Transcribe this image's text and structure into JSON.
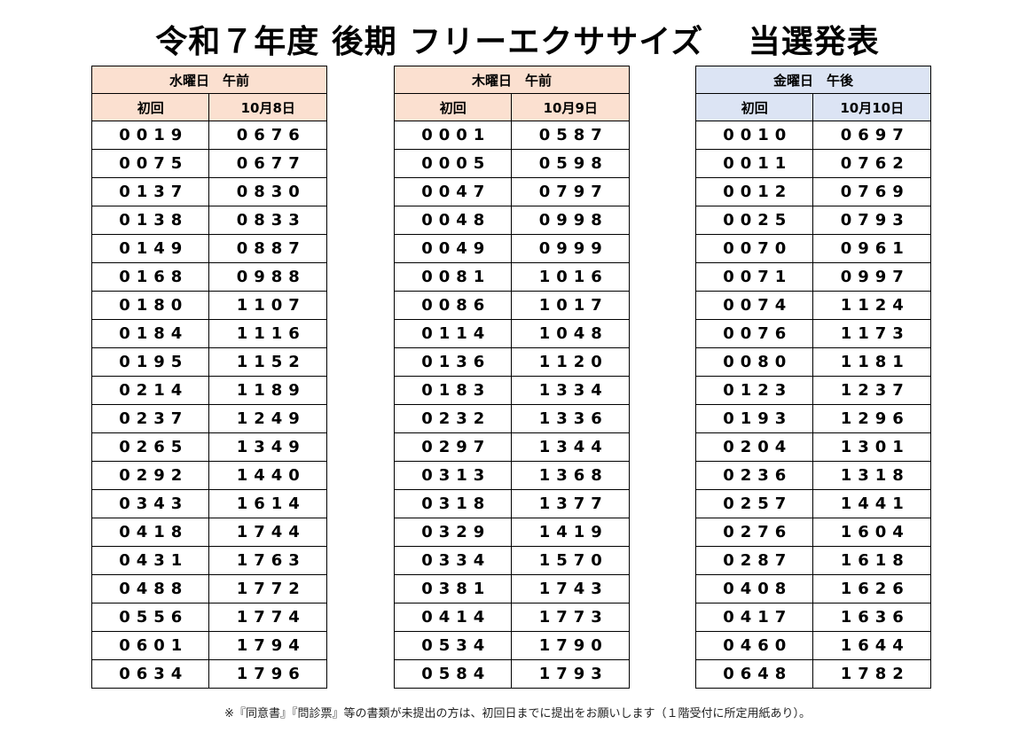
{
  "title": "令和７年度 後期 フリーエクササイズ　 当選発表",
  "tables": [
    {
      "header": "水曜日　午前",
      "col1": "初回",
      "col2": "10月8日",
      "rows": [
        [
          "0019",
          "0676"
        ],
        [
          "0075",
          "0677"
        ],
        [
          "0137",
          "0830"
        ],
        [
          "0138",
          "0833"
        ],
        [
          "0149",
          "0887"
        ],
        [
          "0168",
          "0988"
        ],
        [
          "0180",
          "1107"
        ],
        [
          "0184",
          "1116"
        ],
        [
          "0195",
          "1152"
        ],
        [
          "0214",
          "1189"
        ],
        [
          "0237",
          "1249"
        ],
        [
          "0265",
          "1349"
        ],
        [
          "0292",
          "1440"
        ],
        [
          "0343",
          "1614"
        ],
        [
          "0418",
          "1744"
        ],
        [
          "0431",
          "1763"
        ],
        [
          "0488",
          "1772"
        ],
        [
          "0556",
          "1774"
        ],
        [
          "0601",
          "1794"
        ],
        [
          "0634",
          "1796"
        ]
      ]
    },
    {
      "header": "木曜日　午前",
      "col1": "初回",
      "col2": "10月9日",
      "rows": [
        [
          "0001",
          "0587"
        ],
        [
          "0005",
          "0598"
        ],
        [
          "0047",
          "0797"
        ],
        [
          "0048",
          "0998"
        ],
        [
          "0049",
          "0999"
        ],
        [
          "0081",
          "1016"
        ],
        [
          "0086",
          "1017"
        ],
        [
          "0114",
          "1048"
        ],
        [
          "0136",
          "1120"
        ],
        [
          "0183",
          "1334"
        ],
        [
          "0232",
          "1336"
        ],
        [
          "0297",
          "1344"
        ],
        [
          "0313",
          "1368"
        ],
        [
          "0318",
          "1377"
        ],
        [
          "0329",
          "1419"
        ],
        [
          "0334",
          "1570"
        ],
        [
          "0381",
          "1743"
        ],
        [
          "0414",
          "1773"
        ],
        [
          "0534",
          "1790"
        ],
        [
          "0584",
          "1793"
        ]
      ]
    },
    {
      "header": "金曜日　午後",
      "col1": "初回",
      "col2": "10月10日",
      "rows": [
        [
          "0010",
          "0697"
        ],
        [
          "0011",
          "0762"
        ],
        [
          "0012",
          "0769"
        ],
        [
          "0025",
          "0793"
        ],
        [
          "0070",
          "0961"
        ],
        [
          "0071",
          "0997"
        ],
        [
          "0074",
          "1124"
        ],
        [
          "0076",
          "1173"
        ],
        [
          "0080",
          "1181"
        ],
        [
          "0123",
          "1237"
        ],
        [
          "0193",
          "1296"
        ],
        [
          "0204",
          "1301"
        ],
        [
          "0236",
          "1318"
        ],
        [
          "0257",
          "1441"
        ],
        [
          "0276",
          "1604"
        ],
        [
          "0287",
          "1618"
        ],
        [
          "0408",
          "1626"
        ],
        [
          "0417",
          "1636"
        ],
        [
          "0460",
          "1644"
        ],
        [
          "0648",
          "1782"
        ]
      ]
    }
  ],
  "colors": {
    "wed_header": "#fbe0d0",
    "thu_header": "#fbe0d0",
    "fri_header": "#dce4f4"
  },
  "note": "※『同意書』『問診票』等の書類が未提出の方は、初回日までに提出をお願いします（１階受付に所定用紙あり）。"
}
